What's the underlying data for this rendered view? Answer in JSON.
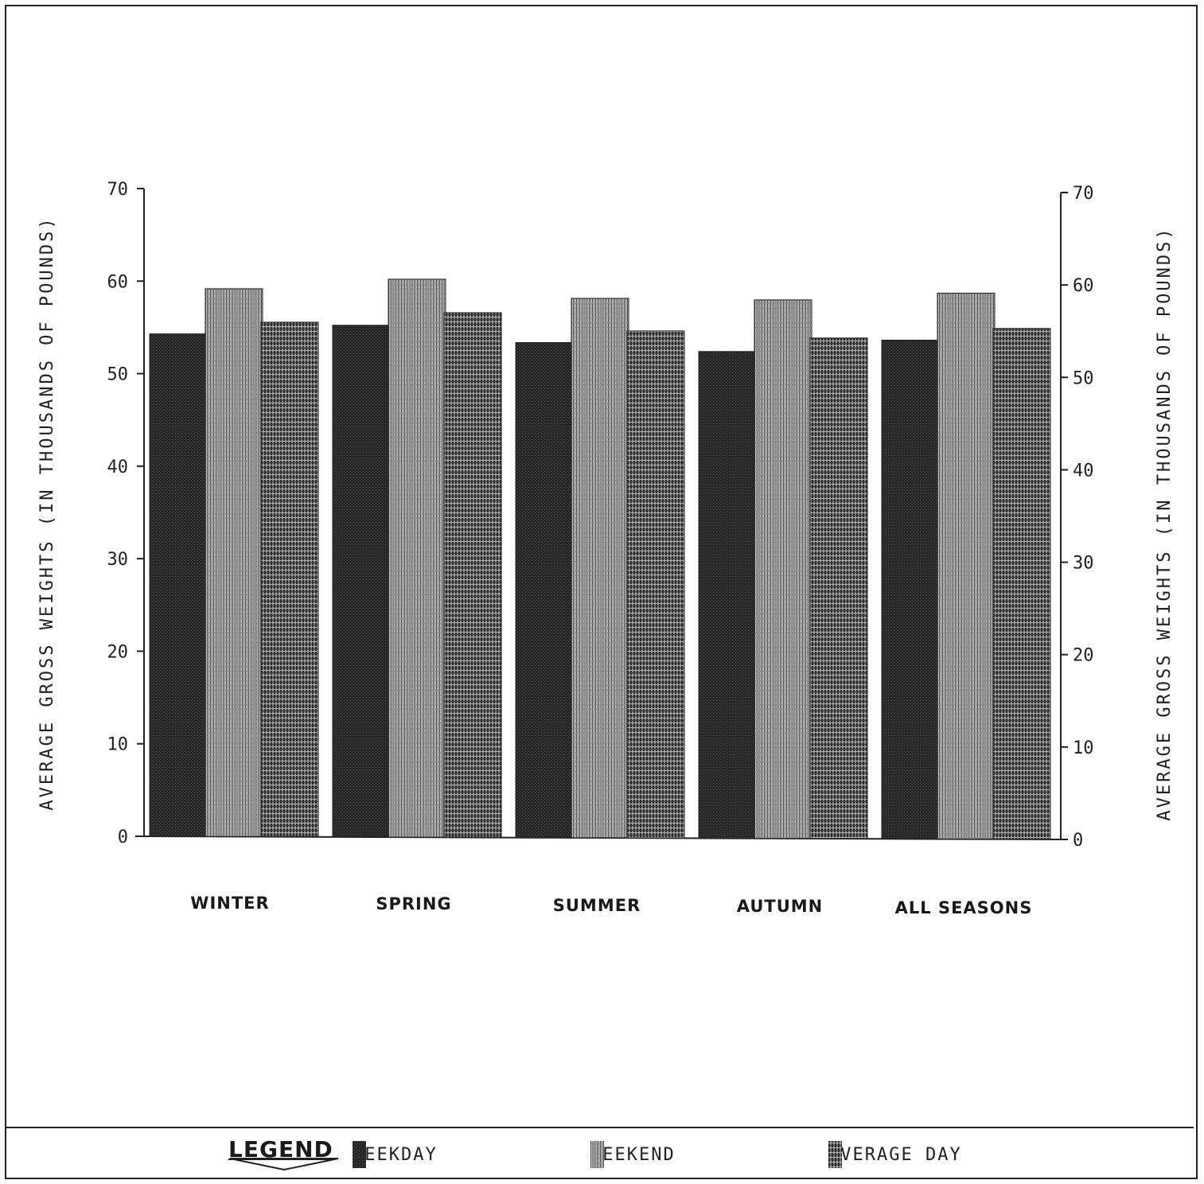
{
  "chart_data": {
    "type": "bar",
    "categories": [
      "WINTER",
      "SPRING",
      "SUMMER",
      "AUTUMN",
      "ALL SEASONS"
    ],
    "series": [
      {
        "name": "WEEKDAY",
        "values": [
          54.3,
          55.3,
          53.5,
          52.6,
          53.9
        ]
      },
      {
        "name": "WEEKEND",
        "values": [
          59.2,
          60.3,
          58.3,
          58.2,
          59.0
        ]
      },
      {
        "name": "AVERAGE DAY",
        "values": [
          55.6,
          56.7,
          54.8,
          54.1,
          55.2
        ]
      }
    ],
    "ylabel": "AVERAGE GROSS WEIGHTS (IN THOUSANDS OF POUNDS)",
    "ylabel_right": "AVERAGE GROSS WEIGHTS (IN THOUSANDS OF POUNDS)",
    "ylim": [
      0,
      70
    ],
    "yticks": [
      "0",
      "10",
      "20",
      "30",
      "40",
      "50",
      "60",
      "70"
    ],
    "grid": false,
    "legend_position": "bottom",
    "legend_title": "LEGEND",
    "colors": {
      "weekday": "#2b2b2b",
      "weekend": "#9a9a9a",
      "average_day": "#4a4a4a"
    }
  }
}
